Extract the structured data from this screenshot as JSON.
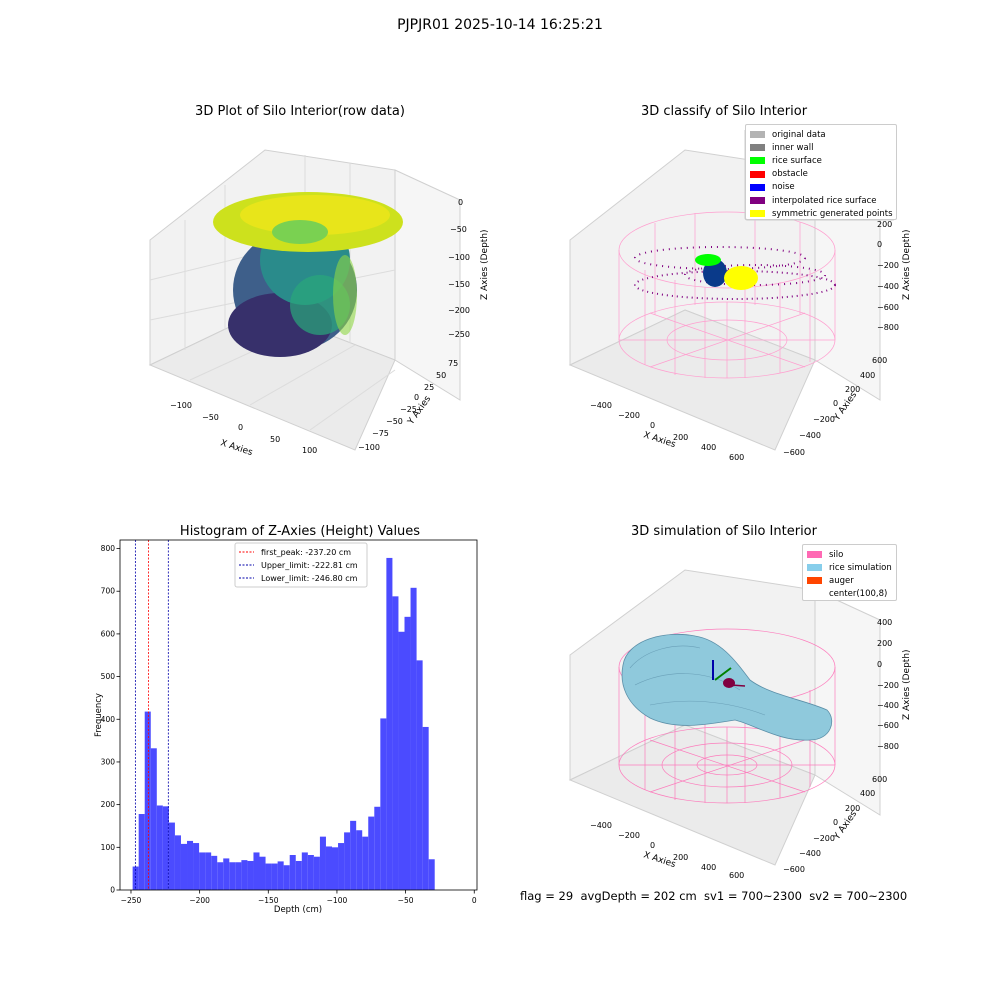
{
  "suptitle": "PJPJR01 2025-10-14 16:25:21",
  "footer": "flag = 29  avgDepth = 202 cm  sv1 = 700~2300  sv2 = 700~2300",
  "panels": {
    "raw": {
      "title": "3D Plot of Silo Interior(row data)",
      "xlabel": "X Axies",
      "ylabel": "Y Axies",
      "zlabel": "Z Axies (Depth)",
      "xticks": [
        "−100",
        "−50",
        "0",
        "50",
        "100"
      ],
      "yticks": [
        "75",
        "50",
        "25",
        "0",
        "−25",
        "−50",
        "−75",
        "−100"
      ],
      "zticks": [
        "0",
        "−50",
        "−100",
        "−150",
        "−200",
        "−250"
      ]
    },
    "classify": {
      "title": "3D classify of Silo Interior",
      "xlabel": "X Axies",
      "ylabel": "Y Axies",
      "zlabel": "Z Axies (Depth)",
      "xticks": [
        "−400",
        "−200",
        "0",
        "200",
        "400",
        "600"
      ],
      "yticks": [
        "600",
        "400",
        "200",
        "0",
        "−200",
        "−400",
        "−600"
      ],
      "zticks": [
        "200",
        "0",
        "−200",
        "−400",
        "−600",
        "−800"
      ],
      "legend": [
        {
          "label": "original data",
          "color": "#b3b3b3"
        },
        {
          "label": "inner wall",
          "color": "#808080"
        },
        {
          "label": "rice surface",
          "color": "#00ff00"
        },
        {
          "label": "obstacle",
          "color": "#ff0000"
        },
        {
          "label": "noise",
          "color": "#0000ff"
        },
        {
          "label": "interpolated rice surface",
          "color": "#800080"
        },
        {
          "label": "symmetric generated points",
          "color": "#ffff00"
        }
      ]
    },
    "simulation": {
      "title": "3D simulation of Silo Interior",
      "xlabel": "X Axies",
      "ylabel": "Y Axies",
      "zlabel": "Z Axies (Depth)",
      "xticks": [
        "−400",
        "−200",
        "0",
        "200",
        "400",
        "600"
      ],
      "yticks": [
        "600",
        "400",
        "200",
        "0",
        "−200",
        "−400",
        "−600"
      ],
      "zticks": [
        "400",
        "200",
        "0",
        "−200",
        "−400",
        "−600",
        "−800"
      ],
      "legend": [
        {
          "label": "silo",
          "color": "#ff69b4"
        },
        {
          "label": "rice simulation",
          "color": "#87ceeb"
        },
        {
          "label": "auger",
          "color": "#ff4500"
        },
        {
          "label": "center(100,8)",
          "color": "#ffffff"
        }
      ]
    }
  },
  "chart_data": {
    "type": "bar",
    "title": "Histogram of Z-Axies (Height) Values",
    "xlabel": "Depth (cm)",
    "ylabel": "Frequency",
    "xlim": [
      -258,
      2
    ],
    "ylim": [
      0,
      820
    ],
    "xticks": [
      -250,
      -200,
      -150,
      -100,
      -50,
      0
    ],
    "xtick_labels": [
      "−250",
      "−200",
      "−150",
      "−100",
      "−50",
      "0"
    ],
    "yticks": [
      0,
      100,
      200,
      300,
      400,
      500,
      600,
      700,
      800
    ],
    "bar_color": "#4b4bff",
    "bin_width": 4.4,
    "bins_start": -248.8,
    "values": [
      55,
      178,
      418,
      332,
      198,
      196,
      158,
      128,
      108,
      115,
      110,
      88,
      88,
      80,
      65,
      74,
      65,
      65,
      70,
      68,
      88,
      78,
      62,
      62,
      67,
      58,
      82,
      68,
      88,
      82,
      78,
      125,
      102,
      100,
      110,
      135,
      162,
      140,
      125,
      172,
      195,
      402,
      778,
      688,
      605,
      640,
      708,
      538,
      382,
      72
    ],
    "lines": [
      {
        "label": "first_peak: -237.20 cm",
        "x": -237.2,
        "color": "#ff0000"
      },
      {
        "label": "Upper_limit: -222.81 cm",
        "x": -222.81,
        "color": "#0000aa"
      },
      {
        "label": "Lower_limit: -246.80 cm",
        "x": -246.8,
        "color": "#0000aa"
      }
    ],
    "legend_position": "top-center"
  }
}
